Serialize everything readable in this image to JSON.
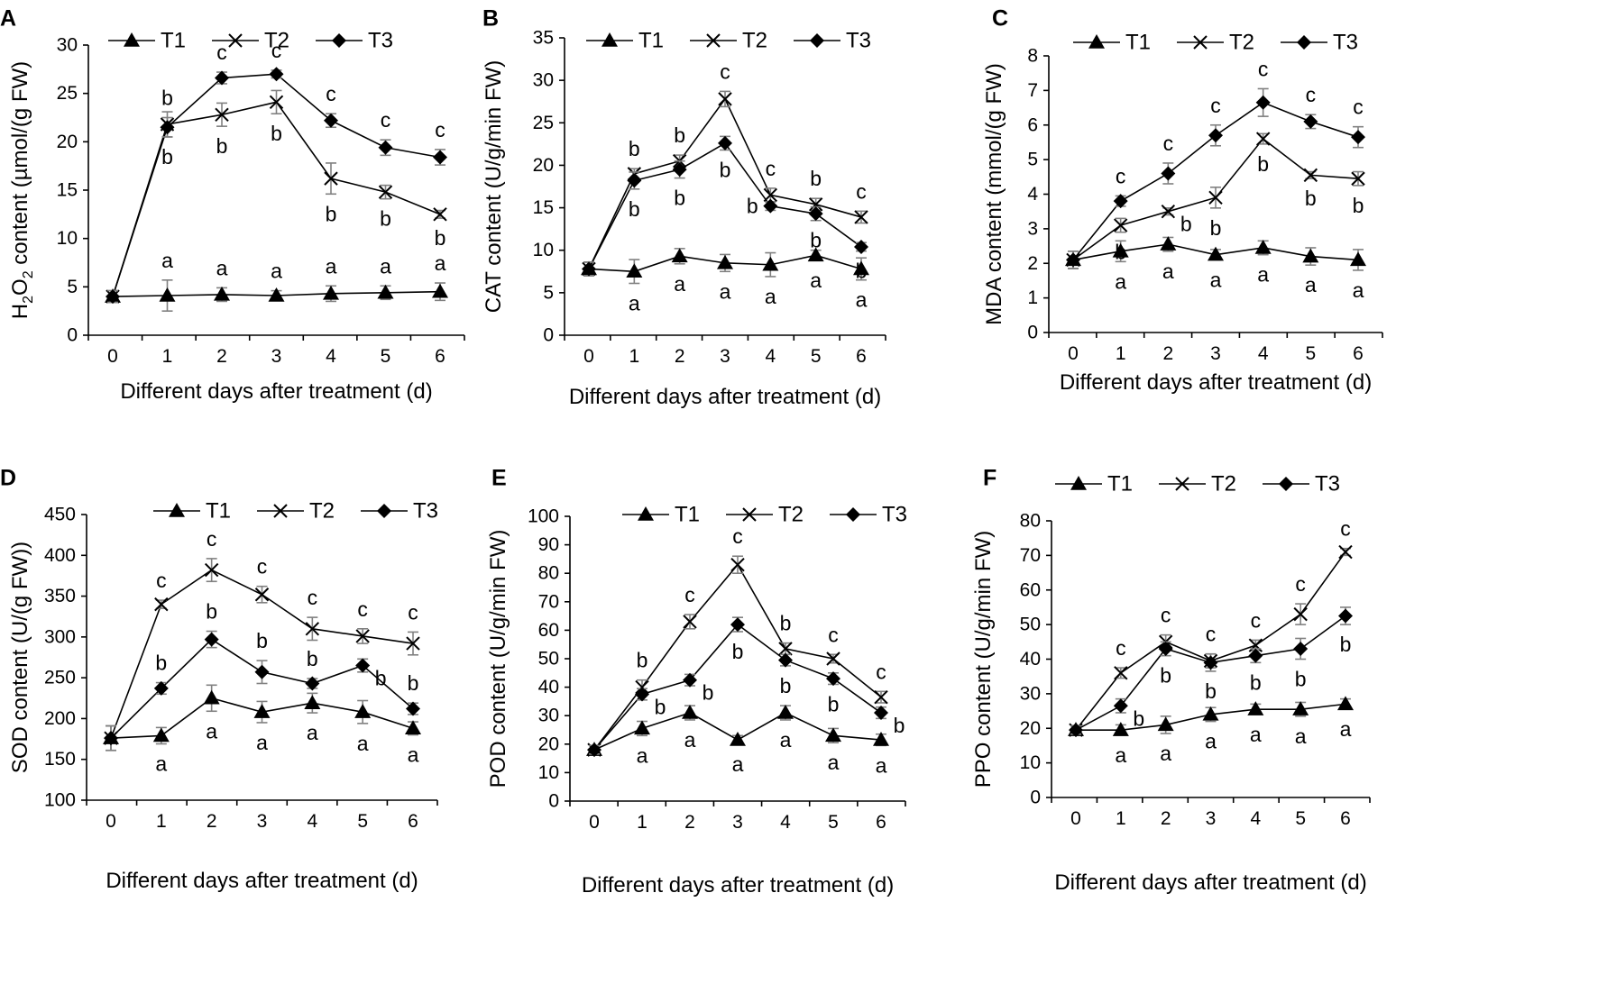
{
  "chart_data": [
    {
      "panel": "A",
      "type": "line",
      "ylabel_parts": [
        "H",
        "2",
        "O",
        "2",
        " content (µmol/(g FW)"
      ],
      "xlabel": "Different days after treatment (d)",
      "x": [
        0,
        1,
        2,
        3,
        4,
        5,
        6
      ],
      "xticks": [
        "0",
        "1",
        "2",
        "3",
        "4",
        "5",
        "6"
      ],
      "ylim": [
        0,
        30
      ],
      "yticks": [
        0,
        5,
        10,
        15,
        20,
        25,
        30
      ],
      "ytick_labels": [
        "0",
        "5",
        "10",
        "15",
        "20",
        "25",
        "30"
      ],
      "series": [
        {
          "name": "T1",
          "marker": "triangle",
          "values": [
            4.0,
            4.1,
            4.2,
            4.1,
            4.3,
            4.4,
            4.5
          ],
          "errors": [
            0.6,
            1.6,
            0.7,
            0.5,
            0.8,
            0.7,
            0.9
          ],
          "letters": [
            "",
            "a",
            "a",
            "a",
            "a",
            "a",
            "a"
          ],
          "letter_pos": [
            "",
            "above",
            "above",
            "above",
            "above",
            "above",
            "above"
          ]
        },
        {
          "name": "T2",
          "marker": "x",
          "values": [
            4.0,
            21.8,
            22.8,
            24.1,
            16.2,
            14.8,
            12.5
          ],
          "errors": [
            0.6,
            1.3,
            1.2,
            1.2,
            1.6,
            0.7,
            0.4
          ],
          "letters": [
            "",
            "b",
            "b",
            "b",
            "b",
            "b",
            "b"
          ],
          "letter_pos": [
            "",
            "below",
            "below",
            "below",
            "below",
            "below",
            "below"
          ]
        },
        {
          "name": "T3",
          "marker": "diamond",
          "values": [
            4.0,
            21.5,
            26.6,
            27.0,
            22.2,
            19.4,
            18.4
          ],
          "errors": [
            0.6,
            1.0,
            0.6,
            0.4,
            0.7,
            0.8,
            0.8
          ],
          "letters": [
            "",
            "b",
            "c",
            "c",
            "c",
            "c",
            "c"
          ],
          "letter_pos": [
            "",
            "above",
            "above",
            "above",
            "above",
            "above",
            "above"
          ]
        }
      ]
    },
    {
      "panel": "B",
      "type": "line",
      "ylabel_parts": [
        "CAT content (U/g/min FW)"
      ],
      "xlabel": "Different days after treatment (d)",
      "x": [
        0,
        1,
        2,
        3,
        4,
        5,
        6
      ],
      "xticks": [
        "0",
        "1",
        "2",
        "3",
        "4",
        "5",
        "6"
      ],
      "ylim": [
        0,
        35
      ],
      "yticks": [
        0,
        5,
        10,
        15,
        20,
        25,
        30,
        35
      ],
      "ytick_labels": [
        "0",
        "5",
        "10",
        "15",
        "20",
        "25",
        "30",
        "35"
      ],
      "series": [
        {
          "name": "T1",
          "marker": "triangle",
          "values": [
            7.8,
            7.5,
            9.3,
            8.5,
            8.3,
            9.4,
            7.8
          ],
          "errors": [
            0.8,
            1.4,
            0.9,
            1.0,
            1.4,
            0.6,
            1.3
          ],
          "letters": [
            "",
            "a",
            "a",
            "a",
            "a",
            "a",
            "a"
          ],
          "letter_pos": [
            "",
            "below",
            "below",
            "below",
            "below",
            "below",
            "below"
          ]
        },
        {
          "name": "T2",
          "marker": "x",
          "values": [
            7.8,
            19.0,
            20.5,
            27.8,
            16.5,
            15.4,
            13.9
          ],
          "errors": [
            0.8,
            0.6,
            0.7,
            0.9,
            0.8,
            0.7,
            0.7
          ],
          "letters": [
            "",
            "b",
            "b",
            "c",
            "c",
            "b",
            "c"
          ],
          "letter_pos": [
            "",
            "above",
            "above",
            "above",
            "above",
            "above",
            "above"
          ]
        },
        {
          "name": "T3",
          "marker": "diamond",
          "values": [
            7.8,
            18.2,
            19.5,
            22.6,
            15.2,
            14.3,
            10.4
          ],
          "errors": [
            0.8,
            1.0,
            1.0,
            0.8,
            0.5,
            0.8,
            0.5
          ],
          "letters": [
            "",
            "b",
            "b",
            "b",
            "b",
            "b",
            "b"
          ],
          "letter_pos": [
            "",
            "below",
            "below",
            "below",
            "left",
            "below",
            "below"
          ]
        }
      ]
    },
    {
      "panel": "C",
      "type": "line",
      "ylabel_parts": [
        "MDA content (mmol/(g FW)"
      ],
      "xlabel": "Different days after treatment (d)",
      "x": [
        0,
        1,
        2,
        3,
        4,
        5,
        6
      ],
      "xticks": [
        "0",
        "1",
        "2",
        "3",
        "4",
        "5",
        "6"
      ],
      "ylim": [
        0,
        8
      ],
      "yticks": [
        0,
        1,
        2,
        3,
        4,
        5,
        6,
        7,
        8
      ],
      "ytick_labels": [
        "0",
        "1",
        "2",
        "3",
        "4",
        "5",
        "6",
        "7",
        "8"
      ],
      "series": [
        {
          "name": "T1",
          "marker": "triangle",
          "values": [
            2.1,
            2.35,
            2.55,
            2.25,
            2.45,
            2.2,
            2.1
          ],
          "errors": [
            0.25,
            0.3,
            0.2,
            0.15,
            0.2,
            0.25,
            0.3
          ],
          "letters": [
            "",
            "a",
            "a",
            "a",
            "a",
            "a",
            "a"
          ],
          "letter_pos": [
            "",
            "below",
            "below",
            "below",
            "below",
            "below",
            "below"
          ]
        },
        {
          "name": "T2",
          "marker": "x",
          "values": [
            2.1,
            3.1,
            3.5,
            3.9,
            5.6,
            4.55,
            4.45
          ],
          "errors": [
            0.25,
            0.2,
            0.1,
            0.3,
            0.15,
            0.1,
            0.2
          ],
          "letters": [
            "",
            "b",
            "b",
            "b",
            "b",
            "b",
            "b"
          ],
          "letter_pos": [
            "",
            "below",
            "right",
            "below",
            "below",
            "below",
            "below"
          ]
        },
        {
          "name": "T3",
          "marker": "diamond",
          "values": [
            2.1,
            3.8,
            4.6,
            5.7,
            6.65,
            6.1,
            5.65
          ],
          "errors": [
            0.25,
            0.15,
            0.3,
            0.3,
            0.4,
            0.2,
            0.3
          ],
          "letters": [
            "",
            "c",
            "c",
            "c",
            "c",
            "c",
            "c"
          ],
          "letter_pos": [
            "",
            "above",
            "above",
            "above",
            "above",
            "above",
            "above"
          ]
        }
      ]
    },
    {
      "panel": "D",
      "type": "line",
      "ylabel_parts": [
        "SOD content (U/(g FW))"
      ],
      "xlabel": "Different days after treatment (d)",
      "x": [
        0,
        1,
        2,
        3,
        4,
        5,
        6
      ],
      "xticks": [
        "0",
        "1",
        "2",
        "3",
        "4",
        "5",
        "6"
      ],
      "ylim": [
        100,
        450
      ],
      "yticks": [
        100,
        150,
        200,
        250,
        300,
        350,
        400,
        450
      ],
      "ytick_labels": [
        "100",
        "150",
        "200",
        "250",
        "300",
        "350",
        "400",
        "450"
      ],
      "series": [
        {
          "name": "T1",
          "marker": "triangle",
          "values": [
            176,
            179,
            225,
            208,
            219,
            208,
            188
          ],
          "errors": [
            15,
            10,
            16,
            13,
            12,
            14,
            8
          ],
          "letters": [
            "",
            "a",
            "a",
            "a",
            "a",
            "a",
            "a"
          ],
          "letter_pos": [
            "",
            "below",
            "below",
            "below",
            "below",
            "below",
            "below"
          ]
        },
        {
          "name": "T2",
          "marker": "x",
          "values": [
            176,
            340,
            382,
            352,
            310,
            301,
            292
          ],
          "errors": [
            15,
            5,
            14,
            10,
            14,
            9,
            14
          ],
          "letters": [
            "",
            "c",
            "c",
            "c",
            "c",
            "c",
            "c"
          ],
          "letter_pos": [
            "",
            "above",
            "above",
            "above",
            "above",
            "above",
            "above"
          ]
        },
        {
          "name": "T3",
          "marker": "diamond",
          "values": [
            176,
            237,
            297,
            257,
            243,
            265,
            212
          ],
          "errors": [
            15,
            7,
            10,
            14,
            6,
            8,
            7
          ],
          "letters": [
            "",
            "b",
            "b",
            "b",
            "b",
            "b",
            "b"
          ],
          "letter_pos": [
            "",
            "above",
            "above",
            "above",
            "above",
            "right",
            "above"
          ]
        }
      ]
    },
    {
      "panel": "E",
      "type": "line",
      "ylabel_parts": [
        "POD content (U/g/min FW)"
      ],
      "xlabel": "Different days after treatment (d)",
      "x": [
        0,
        1,
        2,
        3,
        4,
        5,
        6
      ],
      "xticks": [
        "0",
        "1",
        "2",
        "3",
        "4",
        "5",
        "6"
      ],
      "ylim": [
        0,
        100
      ],
      "yticks": [
        0,
        10,
        20,
        30,
        40,
        50,
        60,
        70,
        80,
        90,
        100
      ],
      "ytick_labels": [
        "0",
        "10",
        "20",
        "30",
        "40",
        "50",
        "60",
        "70",
        "80",
        "90",
        "100"
      ],
      "series": [
        {
          "name": "T1",
          "marker": "triangle",
          "values": [
            18,
            25.5,
            31,
            21.5,
            31,
            23,
            21.5
          ],
          "errors": [
            1.5,
            2.5,
            2.5,
            1.5,
            2.5,
            2.5,
            2
          ],
          "letters": [
            "",
            "a",
            "a",
            "a",
            "a",
            "a",
            "a"
          ],
          "letter_pos": [
            "",
            "below",
            "below",
            "below",
            "below",
            "below",
            "below"
          ]
        },
        {
          "name": "T2",
          "marker": "x",
          "values": [
            18,
            40,
            63,
            83,
            53.5,
            50,
            36.5
          ],
          "errors": [
            1.5,
            2.5,
            2.5,
            3,
            2,
            1.5,
            2
          ],
          "letters": [
            "",
            "b",
            "c",
            "c",
            "b",
            "c",
            "c"
          ],
          "letter_pos": [
            "",
            "above",
            "above",
            "above",
            "above",
            "above",
            "above"
          ]
        },
        {
          "name": "T3",
          "marker": "diamond",
          "values": [
            18,
            37.5,
            42.5,
            62,
            49.5,
            43,
            31
          ],
          "errors": [
            1.5,
            2,
            2,
            2.5,
            2,
            2,
            2
          ],
          "letters": [
            "",
            "b",
            "b",
            "b",
            "b",
            "b",
            "b"
          ],
          "letter_pos": [
            "",
            "right",
            "right",
            "below",
            "below",
            "below",
            "right"
          ]
        }
      ]
    },
    {
      "panel": "F",
      "type": "line",
      "ylabel_parts": [
        "PPO content (U/g/min FW)"
      ],
      "xlabel": "Different days after treatment (d)",
      "x": [
        0,
        1,
        2,
        3,
        4,
        5,
        6
      ],
      "xticks": [
        "0",
        "1",
        "2",
        "3",
        "4",
        "5",
        "6"
      ],
      "ylim": [
        0,
        80
      ],
      "yticks": [
        0,
        10,
        20,
        30,
        40,
        50,
        60,
        70,
        80
      ],
      "ytick_labels": [
        "0",
        "10",
        "20",
        "30",
        "40",
        "50",
        "60",
        "70",
        "80"
      ],
      "series": [
        {
          "name": "T1",
          "marker": "triangle",
          "values": [
            19.5,
            19.5,
            21,
            24,
            25.5,
            25.5,
            27
          ],
          "errors": [
            1.2,
            1.5,
            2.5,
            2,
            1.5,
            2,
            1.5
          ],
          "letters": [
            "",
            "a",
            "a",
            "a",
            "a",
            "a",
            "a"
          ],
          "letter_pos": [
            "",
            "below",
            "below",
            "below",
            "below",
            "below",
            "below"
          ]
        },
        {
          "name": "T2",
          "marker": "x",
          "values": [
            19.5,
            36,
            45,
            39.5,
            44,
            53,
            71
          ],
          "errors": [
            1.2,
            1.5,
            2,
            2,
            1.5,
            3,
            1
          ],
          "letters": [
            "",
            "c",
            "c",
            "c",
            "c",
            "c",
            "c"
          ],
          "letter_pos": [
            "",
            "above",
            "above",
            "above",
            "above",
            "above",
            "above"
          ]
        },
        {
          "name": "T3",
          "marker": "diamond",
          "values": [
            19.5,
            26.5,
            43,
            39,
            41,
            43,
            52.5
          ],
          "errors": [
            1.2,
            2,
            2,
            2.5,
            2,
            3,
            2.5
          ],
          "letters": [
            "",
            "b",
            "b",
            "b",
            "b",
            "b",
            "b"
          ],
          "letter_pos": [
            "",
            "right",
            "below",
            "below",
            "below",
            "below",
            "below"
          ]
        }
      ]
    }
  ]
}
